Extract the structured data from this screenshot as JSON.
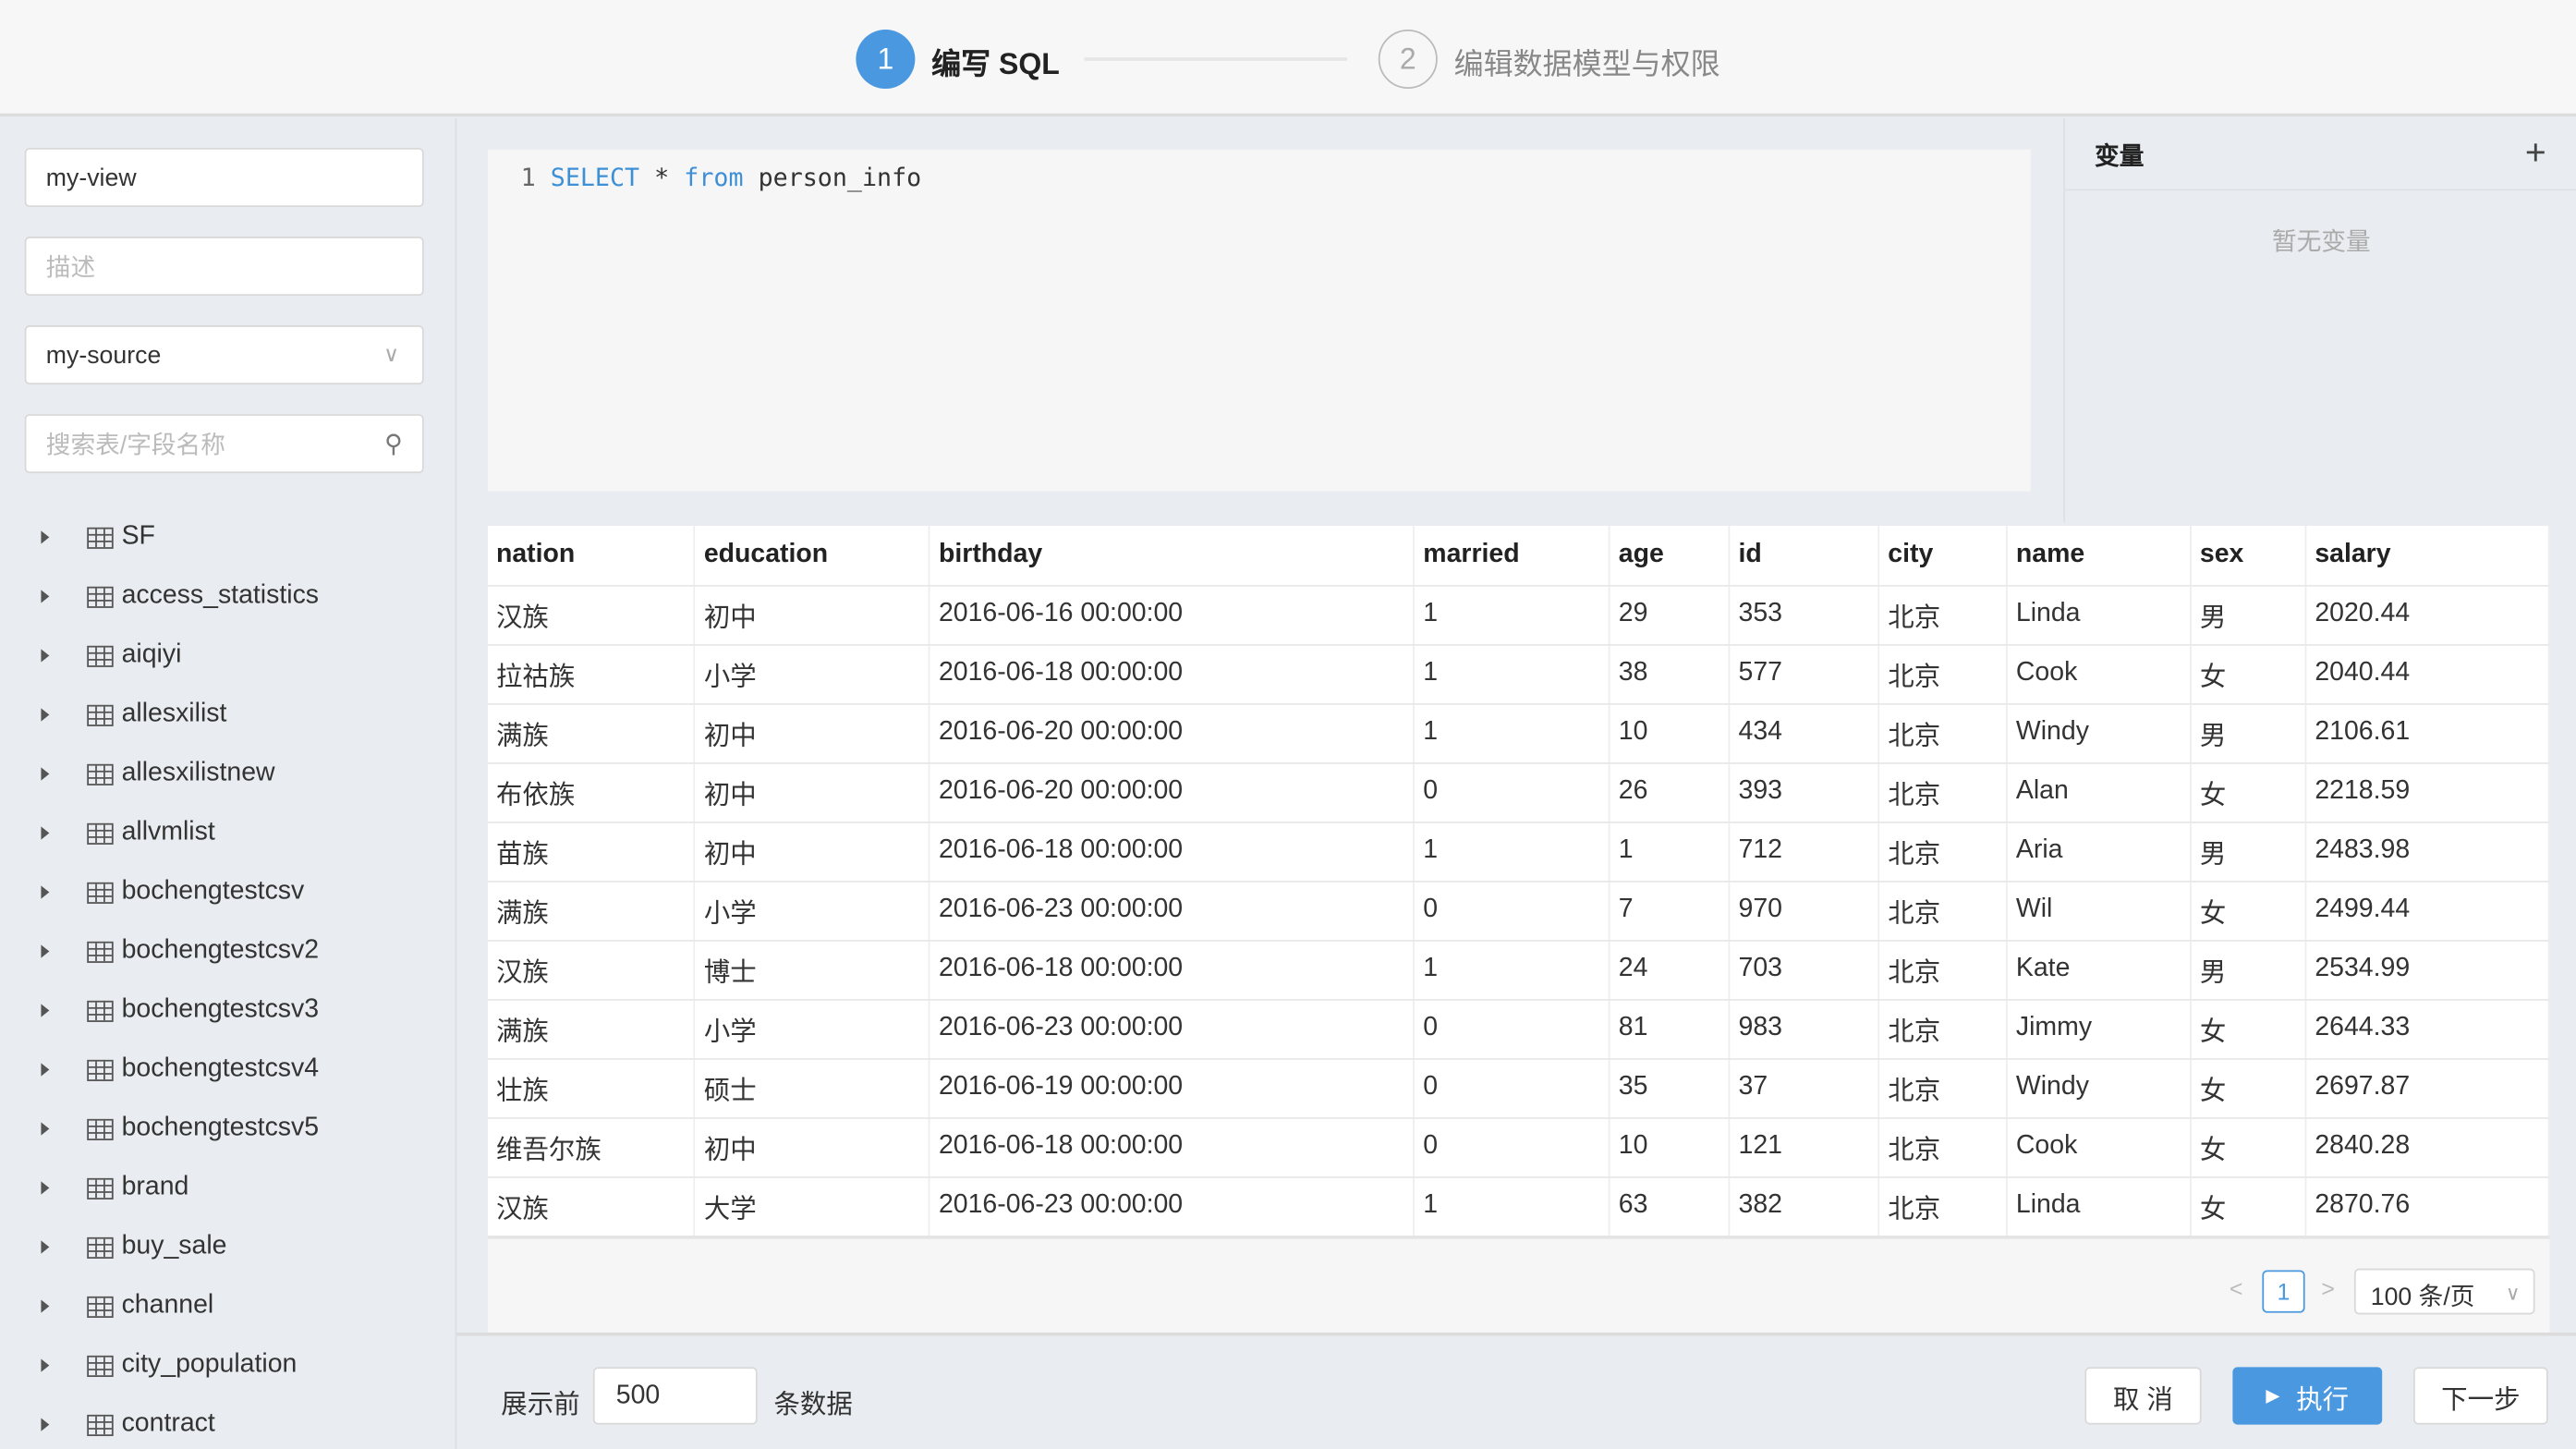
{
  "steps": [
    {
      "num": "1",
      "label": "编写 SQL",
      "active": true
    },
    {
      "num": "2",
      "label": "编辑数据模型与权限",
      "active": false
    }
  ],
  "form": {
    "name_value": "my-view",
    "description_placeholder": "描述",
    "source_value": "my-source",
    "search_placeholder": "搜索表/字段名称"
  },
  "tree": [
    "SF",
    "access_statistics",
    "aiqiyi",
    "allesxilist",
    "allesxilistnew",
    "allvmlist",
    "bochengtestcsv",
    "bochengtestcsv2",
    "bochengtestcsv3",
    "bochengtestcsv4",
    "bochengtestcsv5",
    "brand",
    "buy_sale",
    "channel",
    "city_population",
    "contract"
  ],
  "editor": {
    "line": "1",
    "kw1": "SELECT",
    "star": "*",
    "kw2": "from",
    "table": "person_info"
  },
  "variables": {
    "title": "变量",
    "add": "+",
    "empty": "暂无变量"
  },
  "table": {
    "columns": [
      "nation",
      "education",
      "birthday",
      "married",
      "age",
      "id",
      "city",
      "name",
      "sex",
      "salary"
    ],
    "rows": [
      [
        "汉族",
        "初中",
        "2016-06-16 00:00:00",
        "1",
        "29",
        "353",
        "北京",
        "Linda",
        "男",
        "2020.44"
      ],
      [
        "拉祜族",
        "小学",
        "2016-06-18 00:00:00",
        "1",
        "38",
        "577",
        "北京",
        "Cook",
        "女",
        "2040.44"
      ],
      [
        "满族",
        "初中",
        "2016-06-20 00:00:00",
        "1",
        "10",
        "434",
        "北京",
        "Windy",
        "男",
        "2106.61"
      ],
      [
        "布依族",
        "初中",
        "2016-06-20 00:00:00",
        "0",
        "26",
        "393",
        "北京",
        "Alan",
        "女",
        "2218.59"
      ],
      [
        "苗族",
        "初中",
        "2016-06-18 00:00:00",
        "1",
        "1",
        "712",
        "北京",
        "Aria",
        "男",
        "2483.98"
      ],
      [
        "满族",
        "小学",
        "2016-06-23 00:00:00",
        "0",
        "7",
        "970",
        "北京",
        "Wil",
        "女",
        "2499.44"
      ],
      [
        "汉族",
        "博士",
        "2016-06-18 00:00:00",
        "1",
        "24",
        "703",
        "北京",
        "Kate",
        "男",
        "2534.99"
      ],
      [
        "满族",
        "小学",
        "2016-06-23 00:00:00",
        "0",
        "81",
        "983",
        "北京",
        "Jimmy",
        "女",
        "2644.33"
      ],
      [
        "壮族",
        "硕士",
        "2016-06-19 00:00:00",
        "0",
        "35",
        "37",
        "北京",
        "Windy",
        "女",
        "2697.87"
      ],
      [
        "维吾尔族",
        "初中",
        "2016-06-18 00:00:00",
        "0",
        "10",
        "121",
        "北京",
        "Cook",
        "女",
        "2840.28"
      ],
      [
        "汉族",
        "大学",
        "2016-06-23 00:00:00",
        "1",
        "63",
        "382",
        "北京",
        "Linda",
        "女",
        "2870.76"
      ]
    ]
  },
  "pagination": {
    "current": "1",
    "page_size": "100 条/页"
  },
  "footer": {
    "prefix": "展示前",
    "limit": "500",
    "suffix": "条数据",
    "cancel": "取 消",
    "run": "执行",
    "next": "下一步"
  },
  "colors": {
    "accent": "#4a98e0"
  }
}
